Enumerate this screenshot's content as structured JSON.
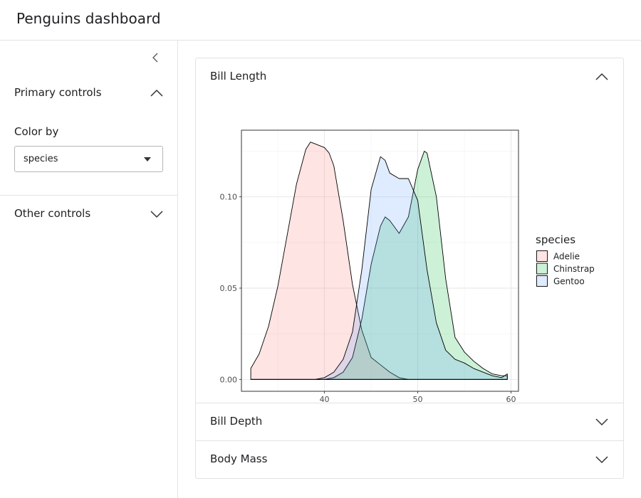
{
  "app": {
    "title": "Penguins dashboard"
  },
  "sidebar": {
    "collapse_icon": "chevron-left-icon",
    "primary": {
      "label": "Primary controls",
      "icon": "chevron-up-icon",
      "expanded": true
    },
    "color_by": {
      "label": "Color by",
      "value": "species"
    },
    "other": {
      "label": "Other controls",
      "icon": "chevron-down-icon",
      "expanded": false
    }
  },
  "main": {
    "panels": [
      {
        "label": "Bill Length",
        "expanded": true,
        "icon": "chevron-up-icon"
      },
      {
        "label": "Bill Depth",
        "expanded": false,
        "icon": "chevron-down-icon"
      },
      {
        "label": "Body Mass",
        "expanded": false,
        "icon": "chevron-down-icon"
      }
    ]
  },
  "chart_data": {
    "type": "area",
    "title": "",
    "xlabel": "",
    "ylabel": "",
    "xlim": [
      31.1,
      60.8
    ],
    "ylim": [
      -0.0065,
      0.1365
    ],
    "x_ticks": [
      40,
      50,
      60
    ],
    "y_ticks": [
      0.0,
      0.05,
      0.1
    ],
    "y_tick_labels": [
      "0.00",
      "0.05",
      "0.10"
    ],
    "grid": true,
    "legend": {
      "title": "species",
      "position": "right"
    },
    "series": [
      {
        "name": "Adelie",
        "fill": "#F8766D",
        "points": [
          [
            32.1,
            0.006
          ],
          [
            33,
            0.014
          ],
          [
            34,
            0.029
          ],
          [
            35,
            0.051
          ],
          [
            36,
            0.079
          ],
          [
            37,
            0.107
          ],
          [
            38,
            0.126
          ],
          [
            38.5,
            0.13
          ],
          [
            39,
            0.129
          ],
          [
            40,
            0.127
          ],
          [
            40.5,
            0.124
          ],
          [
            41,
            0.117
          ],
          [
            42,
            0.087
          ],
          [
            43,
            0.052
          ],
          [
            44,
            0.027
          ],
          [
            45,
            0.012
          ],
          [
            46,
            0.008
          ],
          [
            47,
            0.004
          ],
          [
            48,
            0.001
          ],
          [
            49,
            0
          ],
          [
            50,
            0
          ],
          [
            59.6,
            0
          ]
        ]
      },
      {
        "name": "Chinstrap",
        "fill": "#00BA38",
        "points": [
          [
            32.1,
            0
          ],
          [
            40,
            0
          ],
          [
            41,
            0.001
          ],
          [
            42,
            0.004
          ],
          [
            43,
            0.012
          ],
          [
            44,
            0.033
          ],
          [
            45,
            0.063
          ],
          [
            46,
            0.084
          ],
          [
            46.5,
            0.089
          ],
          [
            47,
            0.087
          ],
          [
            48,
            0.08
          ],
          [
            49,
            0.089
          ],
          [
            50,
            0.115
          ],
          [
            50.7,
            0.125
          ],
          [
            51,
            0.124
          ],
          [
            52,
            0.1
          ],
          [
            53,
            0.055
          ],
          [
            54,
            0.023
          ],
          [
            55,
            0.015
          ],
          [
            56,
            0.01
          ],
          [
            57,
            0.006
          ],
          [
            58,
            0.003
          ],
          [
            59,
            0.002
          ],
          [
            59.6,
            0.002
          ]
        ]
      },
      {
        "name": "Gentoo",
        "fill": "#619CFF",
        "points": [
          [
            32.1,
            0
          ],
          [
            39,
            0
          ],
          [
            40,
            0.001
          ],
          [
            41,
            0.004
          ],
          [
            42,
            0.011
          ],
          [
            43,
            0.026
          ],
          [
            44,
            0.06
          ],
          [
            45,
            0.104
          ],
          [
            46,
            0.122
          ],
          [
            46.5,
            0.12
          ],
          [
            47,
            0.113
          ],
          [
            48,
            0.11
          ],
          [
            49,
            0.11
          ],
          [
            50,
            0.098
          ],
          [
            51,
            0.06
          ],
          [
            52,
            0.031
          ],
          [
            53,
            0.016
          ],
          [
            54,
            0.011
          ],
          [
            55,
            0.009
          ],
          [
            56,
            0.006
          ],
          [
            57,
            0.004
          ],
          [
            58,
            0.002
          ],
          [
            59,
            0.001
          ],
          [
            59.6,
            0.003
          ]
        ]
      }
    ]
  }
}
